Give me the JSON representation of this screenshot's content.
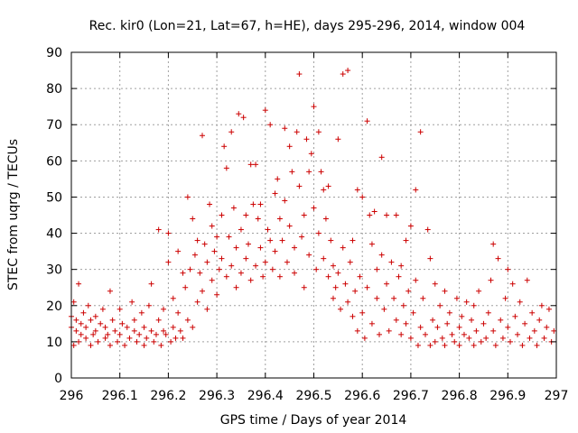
{
  "chart_data": {
    "type": "scatter",
    "title": "Rec. kir0 (Lon=21, Lat=67, h=HE), days 295-296, 2014, window 004",
    "xlabel": "GPS time / Days of year 2014",
    "ylabel": "STEC from uqrg / TECUs",
    "xlim": [
      296,
      297
    ],
    "ylim": [
      0,
      90
    ],
    "xticks": [
      296,
      296.1,
      296.2,
      296.3,
      296.4,
      296.5,
      296.6,
      296.7,
      296.8,
      296.9,
      297
    ],
    "xtick_labels": [
      "296",
      "296.1",
      "296.2",
      "296.3",
      "296.4",
      "296.5",
      "296.6",
      "296.7",
      "296.8",
      "296.9",
      "297"
    ],
    "yticks": [
      0,
      10,
      20,
      30,
      40,
      50,
      60,
      70,
      80,
      90
    ],
    "ytick_labels": [
      "0",
      "10",
      "20",
      "30",
      "40",
      "50",
      "60",
      "70",
      "80",
      "90"
    ],
    "grid": true,
    "marker": "+",
    "point_color": "#cc0000",
    "series": [
      {
        "points": [
          [
            296.0,
            14
          ],
          [
            296.0,
            17
          ],
          [
            296.005,
            9
          ],
          [
            296.005,
            21
          ],
          [
            296.01,
            13
          ],
          [
            296.01,
            16
          ],
          [
            296.015,
            10
          ],
          [
            296.015,
            26
          ],
          [
            296.02,
            12
          ],
          [
            296.02,
            15
          ],
          [
            296.025,
            18
          ],
          [
            296.03,
            11
          ],
          [
            296.03,
            14
          ],
          [
            296.035,
            20
          ],
          [
            296.04,
            9
          ],
          [
            296.04,
            16
          ],
          [
            296.045,
            12
          ],
          [
            296.05,
            13
          ],
          [
            296.05,
            17
          ],
          [
            296.055,
            10
          ],
          [
            296.06,
            15
          ],
          [
            296.065,
            19
          ],
          [
            296.07,
            11
          ],
          [
            296.07,
            14
          ],
          [
            296.075,
            12
          ],
          [
            296.08,
            9
          ],
          [
            296.08,
            24
          ],
          [
            296.085,
            16
          ],
          [
            296.09,
            13
          ],
          [
            296.095,
            10
          ],
          [
            296.1,
            12
          ],
          [
            296.1,
            19
          ],
          [
            296.105,
            15
          ],
          [
            296.11,
            9
          ],
          [
            296.115,
            14
          ],
          [
            296.12,
            11
          ],
          [
            296.125,
            21
          ],
          [
            296.13,
            13
          ],
          [
            296.13,
            16
          ],
          [
            296.135,
            10
          ],
          [
            296.14,
            12
          ],
          [
            296.145,
            18
          ],
          [
            296.15,
            9
          ],
          [
            296.15,
            14
          ],
          [
            296.155,
            11
          ],
          [
            296.16,
            20
          ],
          [
            296.165,
            13
          ],
          [
            296.165,
            26
          ],
          [
            296.17,
            10
          ],
          [
            296.175,
            12
          ],
          [
            296.18,
            41
          ],
          [
            296.18,
            16
          ],
          [
            296.185,
            9
          ],
          [
            296.19,
            13
          ],
          [
            296.19,
            19
          ],
          [
            296.195,
            12
          ],
          [
            296.2,
            32
          ],
          [
            296.2,
            40
          ],
          [
            296.205,
            10
          ],
          [
            296.21,
            14
          ],
          [
            296.21,
            22
          ],
          [
            296.215,
            11
          ],
          [
            296.22,
            35
          ],
          [
            296.22,
            18
          ],
          [
            296.225,
            13
          ],
          [
            296.23,
            29
          ],
          [
            296.23,
            11
          ],
          [
            296.235,
            25
          ],
          [
            296.24,
            50
          ],
          [
            296.24,
            16
          ],
          [
            296.245,
            30
          ],
          [
            296.25,
            44
          ],
          [
            296.25,
            14
          ],
          [
            296.255,
            34
          ],
          [
            296.26,
            38
          ],
          [
            296.26,
            21
          ],
          [
            296.265,
            29
          ],
          [
            296.27,
            67
          ],
          [
            296.27,
            24
          ],
          [
            296.275,
            37
          ],
          [
            296.28,
            32
          ],
          [
            296.28,
            19
          ],
          [
            296.285,
            48
          ],
          [
            296.29,
            27
          ],
          [
            296.29,
            42
          ],
          [
            296.295,
            35
          ],
          [
            296.3,
            39
          ],
          [
            296.3,
            23
          ],
          [
            296.305,
            30
          ],
          [
            296.31,
            45
          ],
          [
            296.31,
            33
          ],
          [
            296.315,
            64
          ],
          [
            296.32,
            58
          ],
          [
            296.32,
            28
          ],
          [
            296.325,
            39
          ],
          [
            296.33,
            68
          ],
          [
            296.33,
            31
          ],
          [
            296.335,
            47
          ],
          [
            296.34,
            36
          ],
          [
            296.34,
            25
          ],
          [
            296.345,
            73
          ],
          [
            296.35,
            41
          ],
          [
            296.35,
            29
          ],
          [
            296.355,
            72
          ],
          [
            296.36,
            45
          ],
          [
            296.36,
            33
          ],
          [
            296.365,
            37
          ],
          [
            296.37,
            59
          ],
          [
            296.37,
            27
          ],
          [
            296.375,
            48
          ],
          [
            296.38,
            59
          ],
          [
            296.38,
            31
          ],
          [
            296.385,
            44
          ],
          [
            296.39,
            36
          ],
          [
            296.39,
            48
          ],
          [
            296.395,
            28
          ],
          [
            296.4,
            74
          ],
          [
            296.4,
            32
          ],
          [
            296.405,
            41
          ],
          [
            296.41,
            38
          ],
          [
            296.41,
            70
          ],
          [
            296.415,
            30
          ],
          [
            296.42,
            51
          ],
          [
            296.42,
            35
          ],
          [
            296.425,
            55
          ],
          [
            296.43,
            44
          ],
          [
            296.43,
            28
          ],
          [
            296.435,
            38
          ],
          [
            296.44,
            69
          ],
          [
            296.44,
            49
          ],
          [
            296.445,
            32
          ],
          [
            296.45,
            64
          ],
          [
            296.45,
            42
          ],
          [
            296.455,
            57
          ],
          [
            296.46,
            36
          ],
          [
            296.46,
            29
          ],
          [
            296.465,
            68
          ],
          [
            296.47,
            84
          ],
          [
            296.47,
            53
          ],
          [
            296.475,
            39
          ],
          [
            296.48,
            25
          ],
          [
            296.48,
            45
          ],
          [
            296.485,
            66
          ],
          [
            296.49,
            57
          ],
          [
            296.49,
            34
          ],
          [
            296.495,
            62
          ],
          [
            296.5,
            75
          ],
          [
            296.5,
            47
          ],
          [
            296.505,
            30
          ],
          [
            296.51,
            68
          ],
          [
            296.51,
            40
          ],
          [
            296.515,
            57
          ],
          [
            296.52,
            52
          ],
          [
            296.52,
            33
          ],
          [
            296.525,
            44
          ],
          [
            296.53,
            53
          ],
          [
            296.53,
            28
          ],
          [
            296.535,
            38
          ],
          [
            296.54,
            31
          ],
          [
            296.54,
            22
          ],
          [
            296.545,
            25
          ],
          [
            296.55,
            66
          ],
          [
            296.55,
            29
          ],
          [
            296.555,
            19
          ],
          [
            296.56,
            84
          ],
          [
            296.56,
            36
          ],
          [
            296.565,
            26
          ],
          [
            296.57,
            85
          ],
          [
            296.57,
            21
          ],
          [
            296.575,
            32
          ],
          [
            296.58,
            17
          ],
          [
            296.58,
            38
          ],
          [
            296.585,
            24
          ],
          [
            296.59,
            52
          ],
          [
            296.59,
            13
          ],
          [
            296.595,
            28
          ],
          [
            296.6,
            50
          ],
          [
            296.6,
            18
          ],
          [
            296.605,
            11
          ],
          [
            296.61,
            71
          ],
          [
            296.61,
            25
          ],
          [
            296.615,
            45
          ],
          [
            296.62,
            15
          ],
          [
            296.62,
            37
          ],
          [
            296.625,
            46
          ],
          [
            296.63,
            22
          ],
          [
            296.63,
            30
          ],
          [
            296.635,
            12
          ],
          [
            296.64,
            34
          ],
          [
            296.64,
            61
          ],
          [
            296.645,
            19
          ],
          [
            296.65,
            26
          ],
          [
            296.65,
            45
          ],
          [
            296.655,
            13
          ],
          [
            296.66,
            32
          ],
          [
            296.665,
            22
          ],
          [
            296.67,
            45
          ],
          [
            296.67,
            16
          ],
          [
            296.675,
            28
          ],
          [
            296.68,
            31
          ],
          [
            296.68,
            12
          ],
          [
            296.685,
            20
          ],
          [
            296.69,
            38
          ],
          [
            296.69,
            15
          ],
          [
            296.695,
            24
          ],
          [
            296.7,
            42
          ],
          [
            296.7,
            11
          ],
          [
            296.705,
            18
          ],
          [
            296.71,
            52
          ],
          [
            296.71,
            27
          ],
          [
            296.715,
            9
          ],
          [
            296.72,
            68
          ],
          [
            296.72,
            14
          ],
          [
            296.725,
            22
          ],
          [
            296.73,
            12
          ],
          [
            296.735,
            41
          ],
          [
            296.74,
            33
          ],
          [
            296.74,
            9
          ],
          [
            296.745,
            16
          ],
          [
            296.75,
            26
          ],
          [
            296.75,
            10
          ],
          [
            296.755,
            14
          ],
          [
            296.76,
            20
          ],
          [
            296.765,
            11
          ],
          [
            296.77,
            24
          ],
          [
            296.77,
            9
          ],
          [
            296.775,
            15
          ],
          [
            296.78,
            18
          ],
          [
            296.785,
            12
          ],
          [
            296.79,
            10
          ],
          [
            296.795,
            22
          ],
          [
            296.8,
            14
          ],
          [
            296.8,
            9
          ],
          [
            296.805,
            17
          ],
          [
            296.81,
            12
          ],
          [
            296.815,
            21
          ],
          [
            296.82,
            11
          ],
          [
            296.825,
            16
          ],
          [
            296.83,
            20
          ],
          [
            296.83,
            9
          ],
          [
            296.835,
            13
          ],
          [
            296.84,
            24
          ],
          [
            296.845,
            10
          ],
          [
            296.85,
            15
          ],
          [
            296.855,
            11
          ],
          [
            296.86,
            18
          ],
          [
            296.865,
            27
          ],
          [
            296.87,
            37
          ],
          [
            296.87,
            13
          ],
          [
            296.875,
            9
          ],
          [
            296.88,
            33
          ],
          [
            296.885,
            16
          ],
          [
            296.89,
            11
          ],
          [
            296.895,
            22
          ],
          [
            296.9,
            30
          ],
          [
            296.9,
            14
          ],
          [
            296.905,
            10
          ],
          [
            296.91,
            26
          ],
          [
            296.915,
            17
          ],
          [
            296.92,
            12
          ],
          [
            296.925,
            21
          ],
          [
            296.93,
            9
          ],
          [
            296.935,
            15
          ],
          [
            296.94,
            27
          ],
          [
            296.945,
            11
          ],
          [
            296.95,
            18
          ],
          [
            296.955,
            13
          ],
          [
            296.96,
            9
          ],
          [
            296.965,
            16
          ],
          [
            296.97,
            20
          ],
          [
            296.975,
            11
          ],
          [
            296.98,
            14
          ],
          [
            296.985,
            19
          ],
          [
            296.99,
            10
          ],
          [
            296.995,
            13
          ]
        ]
      }
    ]
  }
}
